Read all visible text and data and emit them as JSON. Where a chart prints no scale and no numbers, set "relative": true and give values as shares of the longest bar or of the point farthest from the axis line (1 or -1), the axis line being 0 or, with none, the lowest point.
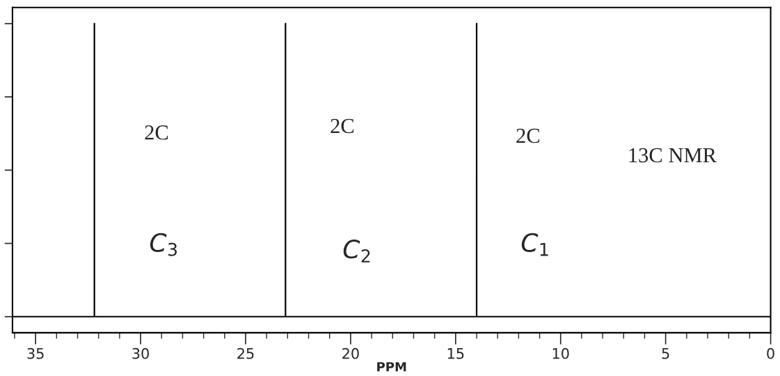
{
  "chart_data": {
    "type": "line",
    "relative": true,
    "xlabel": "PPM",
    "xlim": [
      36.1,
      0
    ],
    "xticks": [
      35,
      30,
      25,
      20,
      15,
      10,
      5,
      0
    ],
    "tick_labels": "x",
    "grid": false,
    "legend": false,
    "marker": "none",
    "line_style": "solid",
    "series": [
      {
        "color": "#000000",
        "x": [
          36.1,
          32.2,
          32.2,
          32.2,
          23.1,
          23.1,
          23.1,
          14.0,
          14.0,
          14.0,
          0
        ],
        "values": [
          0,
          0,
          1,
          0,
          0,
          1,
          0,
          0,
          1,
          0,
          0
        ]
      }
    ],
    "annotations": [
      "2C",
      "2C",
      "2C",
      "C$_{3}$",
      "C$_{2}$",
      "C$_{1}$",
      "13C NMR"
    ]
  }
}
